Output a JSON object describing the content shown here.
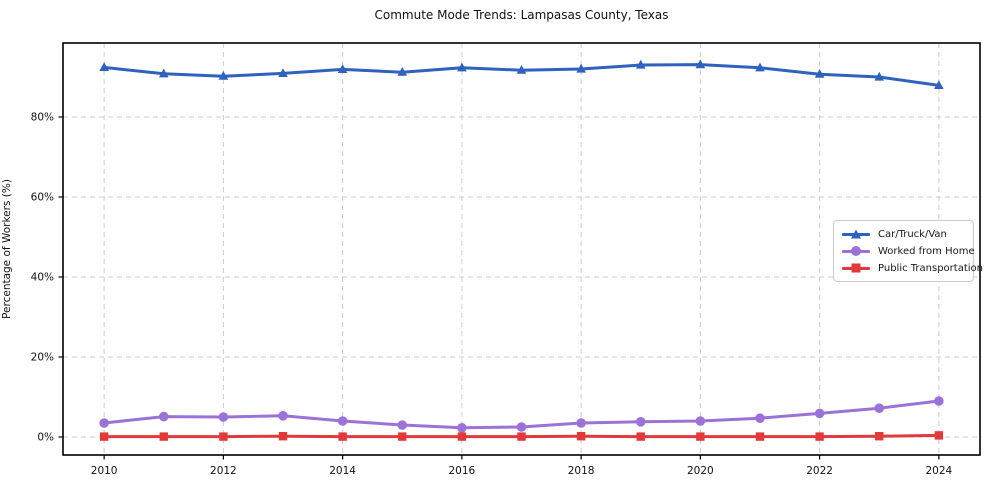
{
  "chart_data": {
    "type": "line",
    "title": "Commute Mode Trends: Lampasas County, Texas",
    "xlabel": "",
    "ylabel": "Percentage of Workers (%)",
    "x": [
      2010,
      2011,
      2012,
      2013,
      2014,
      2015,
      2016,
      2017,
      2018,
      2019,
      2020,
      2021,
      2022,
      2023,
      2024
    ],
    "series": [
      {
        "name": "Car/Truck/Van",
        "color": "#2e62be",
        "marker": "triangle",
        "values": [
          92.4,
          90.8,
          90.2,
          90.9,
          91.9,
          91.2,
          92.3,
          91.7,
          92.0,
          93.0,
          93.1,
          92.3,
          90.7,
          90.0,
          87.9
        ]
      },
      {
        "name": "Worked from Home",
        "color": "#9b72d8",
        "marker": "circle",
        "values": [
          3.5,
          5.1,
          5.0,
          5.3,
          4.0,
          3.0,
          2.3,
          2.5,
          3.5,
          3.8,
          4.0,
          4.7,
          5.9,
          7.2,
          9.0
        ]
      },
      {
        "name": "Public Transportation",
        "color": "#e23a3a",
        "marker": "square",
        "values": [
          0.1,
          0.1,
          0.1,
          0.2,
          0.1,
          0.1,
          0.1,
          0.1,
          0.2,
          0.1,
          0.1,
          0.1,
          0.1,
          0.2,
          0.4
        ]
      }
    ],
    "xticks": [
      2010,
      2012,
      2014,
      2016,
      2018,
      2020,
      2022,
      2024
    ],
    "yticks": [
      0,
      20,
      40,
      60,
      80
    ],
    "ytick_labels": [
      "0%",
      "20%",
      "40%",
      "60%",
      "80%"
    ],
    "xlim": [
      2009.31,
      2024.69
    ],
    "ylim": [
      -4.5,
      98.5
    ],
    "grid": true,
    "grid_color": "#cccccc",
    "frame_color": "#000000",
    "tick_label_color": "#111111",
    "legend_position": "center right"
  }
}
